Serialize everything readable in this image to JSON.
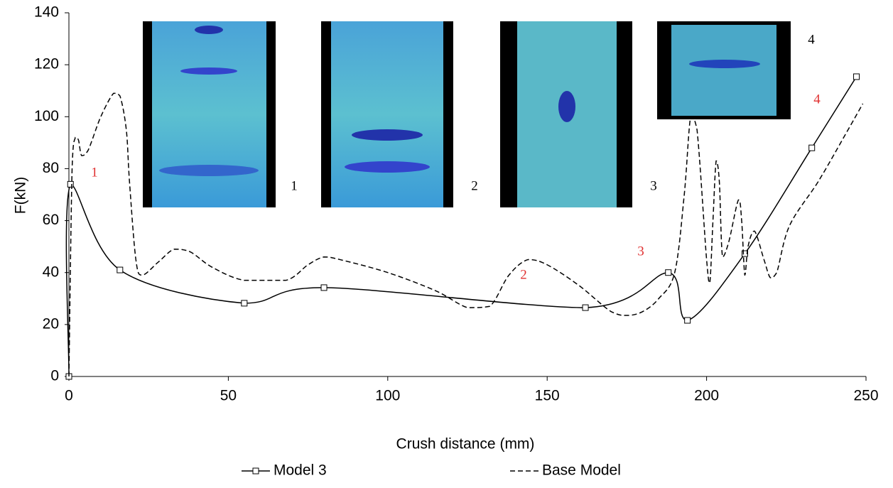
{
  "chart_data": {
    "type": "line",
    "x_label": "Crush distance (mm)",
    "y_label": "F(kN)",
    "xlim": [
      0,
      250
    ],
    "xticks": [
      0,
      50,
      100,
      150,
      200,
      250
    ],
    "ylim": [
      0,
      140
    ],
    "yticks": [
      0,
      20,
      40,
      60,
      80,
      100,
      120,
      140
    ],
    "grid": false,
    "legend": "bottom",
    "series": [
      {
        "name": "Model 3",
        "color": "#000000",
        "dash": "solid",
        "marker": "square",
        "x": [
          0,
          0.5,
          16,
          55,
          80,
          162,
          188,
          194,
          212,
          233,
          247
        ],
        "values": [
          0,
          74,
          41,
          28.2,
          34.2,
          26.5,
          40,
          21.6,
          47.3,
          88,
          115.4
        ]
      },
      {
        "name": "Base Model",
        "color": "#000000",
        "dash": "dashed",
        "marker": "none",
        "x": [
          0,
          1,
          2,
          3,
          4,
          6,
          10,
          14,
          16,
          18,
          19,
          21,
          23,
          28,
          33,
          38,
          45,
          55,
          68,
          75,
          80,
          85,
          100,
          115,
          125,
          132,
          138,
          144,
          150,
          160,
          170,
          175,
          180,
          185,
          190,
          193,
          195,
          197,
          200,
          201,
          202,
          203,
          204,
          205,
          207,
          210,
          211,
          212,
          213,
          215,
          218,
          220,
          222,
          226,
          235,
          243,
          249
        ],
        "values": [
          0,
          80,
          92,
          91,
          85,
          87,
          100,
          109,
          108,
          95,
          75,
          45,
          39,
          44,
          49,
          48,
          42,
          37,
          37,
          43,
          46,
          45,
          40,
          33,
          26.5,
          27,
          39,
          45,
          43,
          35,
          25,
          23.5,
          25,
          30,
          40,
          70,
          100,
          95,
          45,
          36,
          60,
          83,
          75,
          46,
          52,
          68,
          60,
          39,
          50,
          56,
          45,
          38,
          40,
          58,
          75,
          92,
          105
        ]
      }
    ],
    "red_annotations": [
      "1",
      "2",
      "3",
      "4"
    ],
    "inset_labels": [
      "1",
      "2",
      "3",
      "4"
    ]
  }
}
